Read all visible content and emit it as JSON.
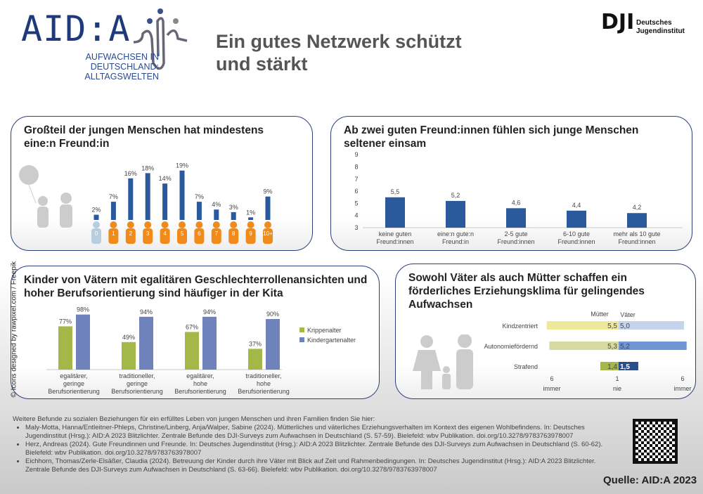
{
  "header": {
    "logo_text": "AID:A",
    "logo_sub1": "AUFWACHSEN IN DEUTSCHLAND:",
    "logo_sub2": "ALLTAGSWELTEN",
    "title_line1": "Ein gutes Netzwerk schützt",
    "title_line2": "und stärkt",
    "dji_logo": "DJI",
    "dji_name1": "Deutsches",
    "dji_name2": "Jugendinstitut"
  },
  "credit": "© Icons designed by rawpixel.com / Freepik",
  "chart_data": [
    {
      "type": "bar",
      "title": "Großteil der jungen Menschen hat mindestens eine:n Freund:in",
      "categories": [
        "0",
        "1",
        "2",
        "3",
        "4",
        "5",
        "6",
        "7",
        "8",
        "9",
        "10+"
      ],
      "values": [
        2,
        7,
        16,
        18,
        14,
        19,
        7,
        4,
        3,
        1,
        9
      ],
      "labels": [
        "2%",
        "7%",
        "16%",
        "18%",
        "14%",
        "19%",
        "7%",
        "4%",
        "3%",
        "1%",
        "9%"
      ],
      "color": "#2a5a9c"
    },
    {
      "type": "bar",
      "title": "Ab zwei guten Freund:innen fühlen sich junge Menschen seltener einsam",
      "categories": [
        "keine guten Freund:innen",
        "eine:n gute:n Freund:in",
        "2-5 gute Freund:innen",
        "6-10 gute Freund:innen",
        "mehr als 10 gute Freund:innen"
      ],
      "values": [
        5.5,
        5.2,
        4.6,
        4.4,
        4.2
      ],
      "labels": [
        "5,5",
        "5,2",
        "4,6",
        "4,4",
        "4,2"
      ],
      "ylim": [
        3,
        9
      ],
      "yticks": [
        "3",
        "4",
        "5",
        "6",
        "7",
        "8",
        "9"
      ],
      "color": "#2a5a9c"
    },
    {
      "type": "bar",
      "title": "Kinder von Vätern mit egalitären Geschlechterrollenansichten und hoher Berufsorientierung sind häufiger in der Kita",
      "categories": [
        "egalitärer, geringe Berufsorientierung",
        "traditioneller, geringe Berufsorientierung",
        "egalitärer, hohe Berufsorientierung",
        "traditioneller, hohe Berufsorientierung"
      ],
      "series": [
        {
          "name": "Krippenalter",
          "values": [
            77,
            49,
            67,
            37
          ],
          "labels": [
            "77%",
            "49%",
            "67%",
            "37%"
          ],
          "color": "#a4b84a"
        },
        {
          "name": "Kindergartenalter",
          "values": [
            98,
            94,
            94,
            90
          ],
          "labels": [
            "98%",
            "94%",
            "94%",
            "90%"
          ],
          "color": "#6f82bb"
        }
      ],
      "legend": "right"
    },
    {
      "type": "bar",
      "title": "Sowohl Väter als auch Mütter schaffen ein förderliches Erziehungsklima für gelingendes Aufwachsen",
      "categories": [
        "Kindzentriert",
        "Autonomiefördernd",
        "Strafend"
      ],
      "series": [
        {
          "name": "Mütter",
          "values": [
            5.5,
            5.3,
            1.4
          ],
          "labels": [
            "5,5",
            "5,3",
            "1,4"
          ],
          "colors": [
            "#ece99a",
            "#d8dba0",
            "#a4b84a"
          ]
        },
        {
          "name": "Väter",
          "values": [
            5.0,
            5.2,
            1.5
          ],
          "labels": [
            "5,0",
            "5,2",
            "1,5"
          ],
          "colors": [
            "#c5d4ec",
            "#6f95d2",
            "#2a4d8c"
          ]
        }
      ],
      "axis": {
        "left_num": "6",
        "left_txt": "immer",
        "mid_num": "1",
        "mid_txt": "nie",
        "right_num": "6",
        "right_txt": "immer"
      }
    }
  ],
  "references": {
    "intro": "Weitere Befunde zu sozialen Beziehungen für ein erfülltes Leben von jungen Menschen und ihren Familien finden Sie hier:",
    "items": [
      "Maly-Motta, Hanna/Entleitner-Phleps, Christine/Linberg, Anja/Walper, Sabine (2024). Mütterliches und väterliches Erziehungsverhalten im Kontext des eigenen Wohlbefindens. In: Deutsches Jugendinstitut (Hrsg.): AID:A 2023 Blitzlichter. Zentrale Befunde des DJI-Surveys zum Aufwachsen in Deutschland (S. 57-59). Bielefeld: wbv Publikation. doi.org/10.3278/9783763978007",
      "Herz, Andreas (2024). Gute Freundinnen und Freunde. In: Deutsches Jugendinstitut (Hrsg.): AID:A 2023 Blitzlichter. Zentrale Befunde des DJI-Surveys zum Aufwachsen in Deutschland (S. 60-62). Bielefeld: wbv Publikation. doi.org/10.3278/9783763978007",
      "Eichhorn, Thomas/Zerle-Elsäßer, Claudia (2024). Betreuung der Kinder durch ihre Väter mit Blick auf Zeit und Rahmenbedingungen. In: Deutsches Jugendinstitut (Hrsg.): AID:A 2023 Blitzlichter. Zentrale Befunde des DJI-Surveys zum Aufwachsen in Deutschland (S. 63-66). Bielefeld: wbv Publikation. doi.org/10.3278/9783763978007"
    ]
  },
  "source": "Quelle: AID:A 2023"
}
